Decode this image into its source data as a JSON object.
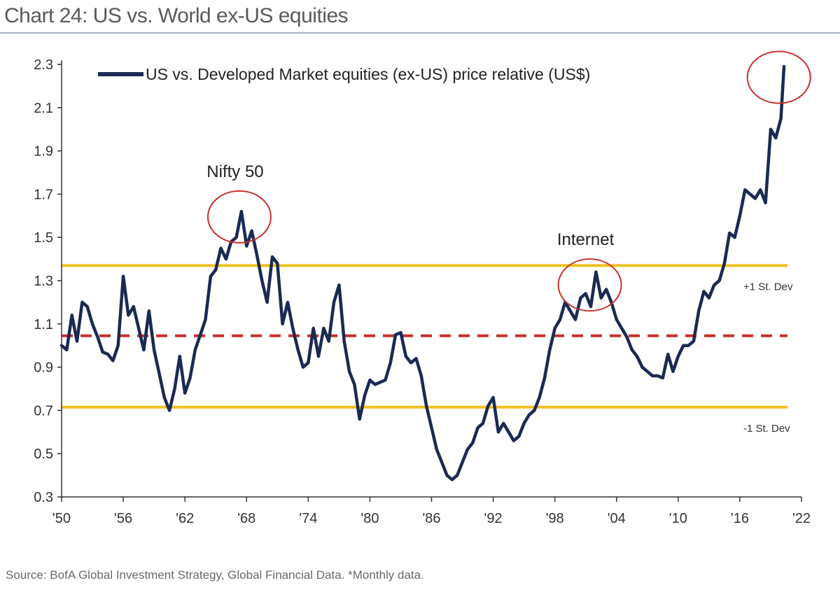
{
  "title": "Chart 24: US vs. World ex-US equities",
  "source": "Source: BofA Global Investment Strategy, Global Financial Data. *Monthly data.",
  "colors": {
    "series": "#1b2a52",
    "band": "#f0c020",
    "mean": "#c8302c",
    "circle": "#c8302c",
    "axis": "#333333"
  },
  "chart_data": {
    "type": "line",
    "title": "Chart 24: US vs. World ex-US equities",
    "xlim": [
      1950,
      2022
    ],
    "ylim": [
      0.3,
      2.3
    ],
    "x_ticks": [
      {
        "value": 1950,
        "label": "'50"
      },
      {
        "value": 1956,
        "label": "'56"
      },
      {
        "value": 1962,
        "label": "'62"
      },
      {
        "value": 1968,
        "label": "'68"
      },
      {
        "value": 1974,
        "label": "'74"
      },
      {
        "value": 1980,
        "label": "'80"
      },
      {
        "value": 1986,
        "label": "'86"
      },
      {
        "value": 1992,
        "label": "'92"
      },
      {
        "value": 1998,
        "label": "'98"
      },
      {
        "value": 2004,
        "label": "'04"
      },
      {
        "value": 2010,
        "label": "'10"
      },
      {
        "value": 2016,
        "label": "'16"
      },
      {
        "value": 2022,
        "label": "'22"
      }
    ],
    "y_ticks": [
      {
        "value": 0.3,
        "label": "0.3"
      },
      {
        "value": 0.5,
        "label": "0.5"
      },
      {
        "value": 0.7,
        "label": "0.7"
      },
      {
        "value": 0.9,
        "label": "0.9"
      },
      {
        "value": 1.1,
        "label": "1.1"
      },
      {
        "value": 1.3,
        "label": "1.3"
      },
      {
        "value": 1.5,
        "label": "1.5"
      },
      {
        "value": 1.7,
        "label": "1.7"
      },
      {
        "value": 1.9,
        "label": "1.9"
      },
      {
        "value": 2.1,
        "label": "2.1"
      },
      {
        "value": 2.3,
        "label": "2.3"
      }
    ],
    "grid": false,
    "legend": {
      "position": "top-left"
    },
    "series": [
      {
        "name": "US vs. Developed Market equities (ex-US) price relative (US$)",
        "x": [
          1950.0,
          1950.5,
          1951.0,
          1951.5,
          1952.0,
          1952.5,
          1953.0,
          1953.5,
          1954.0,
          1954.5,
          1955.0,
          1955.5,
          1956.0,
          1956.5,
          1957.0,
          1957.5,
          1958.0,
          1958.5,
          1959.0,
          1959.5,
          1960.0,
          1960.5,
          1961.0,
          1961.5,
          1962.0,
          1962.5,
          1963.0,
          1963.5,
          1964.0,
          1964.5,
          1965.0,
          1965.5,
          1966.0,
          1966.5,
          1967.0,
          1967.5,
          1968.0,
          1968.5,
          1969.0,
          1969.5,
          1970.0,
          1970.5,
          1971.0,
          1971.5,
          1972.0,
          1972.5,
          1973.0,
          1973.5,
          1974.0,
          1974.5,
          1975.0,
          1975.5,
          1976.0,
          1976.5,
          1977.0,
          1977.5,
          1978.0,
          1978.5,
          1979.0,
          1979.5,
          1980.0,
          1980.5,
          1981.0,
          1981.5,
          1982.0,
          1982.5,
          1983.0,
          1983.5,
          1984.0,
          1984.5,
          1985.0,
          1985.5,
          1986.0,
          1986.5,
          1987.0,
          1987.5,
          1988.0,
          1988.5,
          1989.0,
          1989.5,
          1990.0,
          1990.5,
          1991.0,
          1991.5,
          1992.0,
          1992.5,
          1993.0,
          1993.5,
          1994.0,
          1994.5,
          1995.0,
          1995.5,
          1996.0,
          1996.5,
          1997.0,
          1997.5,
          1998.0,
          1998.5,
          1999.0,
          1999.5,
          2000.0,
          2000.5,
          2001.0,
          2001.5,
          2002.0,
          2002.5,
          2003.0,
          2003.5,
          2004.0,
          2004.5,
          2005.0,
          2005.5,
          2006.0,
          2006.5,
          2007.0,
          2007.5,
          2008.0,
          2008.5,
          2009.0,
          2009.5,
          2010.0,
          2010.5,
          2011.0,
          2011.5,
          2012.0,
          2012.5,
          2013.0,
          2013.5,
          2014.0,
          2014.5,
          2015.0,
          2015.5,
          2016.0,
          2016.5,
          2017.0,
          2017.5,
          2018.0,
          2018.5,
          2019.0,
          2019.5,
          2020.0,
          2020.3
        ],
        "values": [
          1.0,
          0.98,
          1.14,
          1.02,
          1.2,
          1.18,
          1.1,
          1.04,
          0.97,
          0.96,
          0.93,
          1.0,
          1.32,
          1.14,
          1.18,
          1.08,
          0.98,
          1.16,
          0.98,
          0.87,
          0.76,
          0.7,
          0.8,
          0.95,
          0.78,
          0.85,
          0.98,
          1.05,
          1.12,
          1.32,
          1.35,
          1.45,
          1.4,
          1.48,
          1.5,
          1.62,
          1.46,
          1.53,
          1.42,
          1.3,
          1.2,
          1.41,
          1.38,
          1.1,
          1.2,
          1.08,
          0.98,
          0.9,
          0.92,
          1.08,
          0.95,
          1.08,
          1.02,
          1.2,
          1.28,
          1.02,
          0.88,
          0.82,
          0.66,
          0.77,
          0.84,
          0.82,
          0.83,
          0.84,
          0.92,
          1.05,
          1.06,
          0.95,
          0.92,
          0.94,
          0.86,
          0.72,
          0.62,
          0.52,
          0.46,
          0.4,
          0.38,
          0.4,
          0.46,
          0.52,
          0.55,
          0.62,
          0.64,
          0.72,
          0.76,
          0.6,
          0.64,
          0.6,
          0.56,
          0.58,
          0.64,
          0.68,
          0.7,
          0.76,
          0.85,
          0.98,
          1.08,
          1.12,
          1.2,
          1.16,
          1.12,
          1.22,
          1.24,
          1.18,
          1.34,
          1.22,
          1.26,
          1.2,
          1.12,
          1.08,
          1.04,
          0.98,
          0.95,
          0.9,
          0.88,
          0.86,
          0.86,
          0.85,
          0.96,
          0.88,
          0.95,
          1.0,
          1.0,
          1.02,
          1.16,
          1.25,
          1.22,
          1.28,
          1.3,
          1.38,
          1.52,
          1.5,
          1.6,
          1.72,
          1.7,
          1.68,
          1.72,
          1.66,
          2.0,
          1.96,
          2.05,
          2.29
        ]
      }
    ],
    "reference_lines": [
      {
        "value": 1.37,
        "label": "+1 St. Dev",
        "style": "solid"
      },
      {
        "value": 1.045,
        "label": "",
        "style": "dashed"
      },
      {
        "value": 0.715,
        "label": "-1 St. Dev",
        "style": "solid"
      }
    ],
    "annotations": [
      {
        "label": "Nifty 50",
        "x": 1967.3,
        "y": 1.595
      },
      {
        "label": "Internet",
        "x": 2001.4,
        "y": 1.28
      },
      {
        "label": "",
        "x": 2019.8,
        "y": 2.24
      }
    ]
  }
}
